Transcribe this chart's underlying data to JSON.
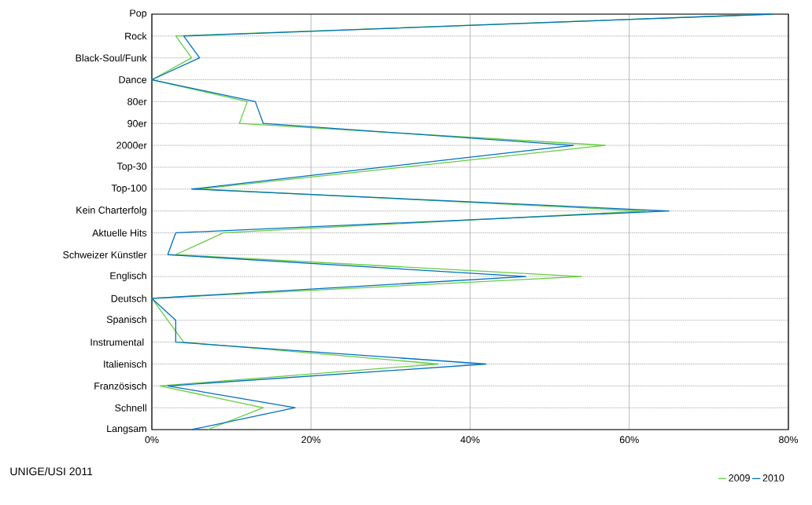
{
  "chart_data": {
    "type": "line",
    "orientation": "horizontal",
    "categories": [
      "Pop",
      "Rock",
      "Black-Soul/Funk",
      "Dance",
      "80er",
      "90er",
      "2000er",
      "Top-30",
      "Top-100",
      "Kein Charterfolg",
      "Aktuelle Hits",
      "Schweizer Künstler",
      "Englisch",
      "Deutsch",
      "Spanisch",
      "Instrumental ",
      "Italienisch",
      "Französisch",
      "Schnell",
      "Langsam"
    ],
    "series": [
      {
        "name": "2009",
        "color": "#66cc44",
        "values": [
          78,
          3,
          5,
          0,
          12,
          11,
          57,
          null,
          6,
          62,
          9,
          3,
          54,
          0,
          2,
          4,
          36,
          1,
          14,
          7
        ]
      },
      {
        "name": "2010",
        "color": "#0070c0",
        "values": [
          78,
          4,
          6,
          0,
          13,
          14,
          53,
          null,
          5,
          65,
          3,
          2,
          47,
          0,
          3,
          3,
          42,
          2,
          18,
          5
        ]
      }
    ],
    "xlim": [
      0,
      80
    ],
    "xticks": [
      {
        "value": 0,
        "label": "0%"
      },
      {
        "value": 20,
        "label": "20%"
      },
      {
        "value": 40,
        "label": "40%"
      },
      {
        "value": 60,
        "label": "60%"
      },
      {
        "value": 80,
        "label": "80%"
      }
    ],
    "grid": true,
    "legend": "bottom right",
    "marker": "none",
    "line_style": "solid",
    "annotations": [
      "UNIGE/USI 2011"
    ]
  }
}
